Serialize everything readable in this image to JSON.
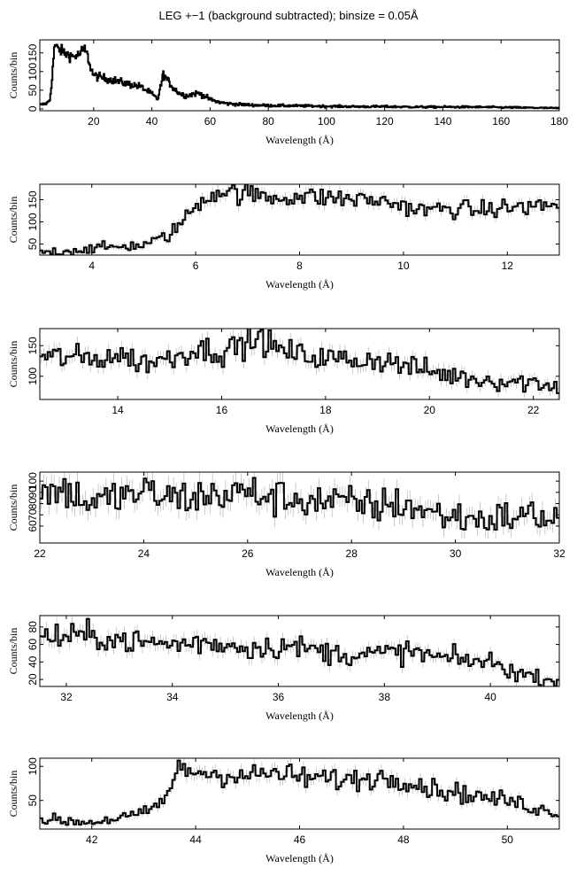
{
  "figure_title": "LEG +−1 (background subtracted); binsize = 0.05Å",
  "chart_data": [
    {
      "type": "line",
      "title": "LEG +−1 (background subtracted); binsize = 0.05Å",
      "xlabel": "Wavelength (Å)",
      "ylabel": "Counts/bin",
      "xlim": [
        1.5,
        180
      ],
      "ylim": [
        -5,
        185
      ],
      "xticks": [
        20,
        40,
        60,
        80,
        100,
        120,
        140,
        160,
        180
      ],
      "yticks": [
        0,
        50,
        100,
        150
      ],
      "ytick_labels": [
        "0",
        "50",
        "100",
        "150"
      ],
      "series": [
        {
          "x": [
            1.5,
            4,
            5,
            6,
            6.5,
            8,
            10,
            13,
            15,
            16,
            17,
            18,
            19,
            20,
            22,
            25,
            28,
            30,
            33,
            36,
            38,
            40,
            42,
            43,
            43.5,
            44,
            45,
            47,
            49,
            50,
            52,
            54,
            56,
            58,
            60,
            63,
            66,
            70,
            75,
            80,
            90,
            100,
            110,
            120,
            130,
            140,
            150,
            160,
            170,
            180
          ],
          "y": [
            10,
            15,
            25,
            110,
            170,
            160,
            150,
            140,
            145,
            155,
            160,
            140,
            110,
            90,
            85,
            80,
            75,
            70,
            65,
            60,
            50,
            40,
            25,
            60,
            75,
            95,
            80,
            60,
            45,
            40,
            35,
            40,
            42,
            35,
            25,
            18,
            14,
            12,
            10,
            9,
            8,
            7,
            6,
            6,
            5,
            5,
            5,
            4,
            3,
            2
          ]
        }
      ]
    },
    {
      "type": "line",
      "xlabel": "Wavelength (Å)",
      "ylabel": "Counts/bin",
      "xlim": [
        3.0,
        13.0
      ],
      "ylim": [
        25,
        185
      ],
      "xticks": [
        4,
        6,
        8,
        10,
        12
      ],
      "yticks": [
        50,
        100,
        150
      ],
      "ytick_labels": [
        "50",
        "100",
        "150"
      ],
      "series": [
        {
          "x": [
            3.0,
            3.5,
            4.0,
            4.5,
            5.0,
            5.3,
            5.5,
            5.7,
            5.9,
            6.0,
            6.2,
            6.4,
            6.6,
            6.8,
            7.0,
            7.2,
            7.5,
            8.0,
            8.5,
            9.0,
            9.5,
            10.0,
            10.3,
            10.5,
            11.0,
            11.5,
            12.0,
            12.5,
            13.0
          ],
          "y": [
            32,
            34,
            40,
            44,
            48,
            60,
            72,
            95,
            120,
            138,
            155,
            168,
            170,
            165,
            162,
            160,
            155,
            158,
            155,
            152,
            148,
            138,
            125,
            128,
            130,
            126,
            132,
            135,
            140
          ]
        }
      ]
    },
    {
      "type": "line",
      "xlabel": "Wavelength (Å)",
      "ylabel": "Counts/bin",
      "xlim": [
        12.5,
        22.5
      ],
      "ylim": [
        62,
        178
      ],
      "xticks": [
        14,
        16,
        18,
        20,
        22
      ],
      "yticks": [
        100,
        150
      ],
      "ytick_labels": [
        "100",
        "150"
      ],
      "series": [
        {
          "x": [
            12.5,
            13.0,
            13.5,
            14.0,
            14.5,
            15.0,
            15.5,
            16.0,
            16.5,
            16.8,
            17.0,
            17.5,
            18.0,
            18.5,
            19.0,
            19.5,
            20.0,
            20.5,
            21.0,
            21.5,
            22.0,
            22.5
          ],
          "y": [
            130,
            132,
            128,
            135,
            122,
            130,
            145,
            140,
            155,
            162,
            145,
            135,
            130,
            126,
            128,
            118,
            108,
            100,
            95,
            92,
            90,
            85
          ]
        }
      ]
    },
    {
      "type": "line",
      "xlabel": "Wavelength (Å)",
      "ylabel": "Counts/bin",
      "xlim": [
        22,
        32
      ],
      "ylim": [
        45,
        108
      ],
      "xticks": [
        22,
        24,
        26,
        28,
        30,
        32
      ],
      "yticks": [
        60,
        70,
        80,
        90,
        100
      ],
      "ytick_labels": [
        "60",
        "70",
        "80",
        "90",
        "100"
      ],
      "series": [
        {
          "x": [
            22.0,
            22.5,
            23.0,
            23.5,
            24.0,
            24.5,
            25.0,
            25.5,
            26.0,
            26.5,
            27.0,
            27.5,
            28.0,
            28.5,
            29.0,
            29.5,
            30.0,
            30.5,
            31.0,
            31.5,
            32.0
          ],
          "y": [
            90,
            92,
            80,
            86,
            90,
            85,
            86,
            88,
            90,
            85,
            84,
            82,
            80,
            78,
            80,
            72,
            68,
            66,
            68,
            70,
            66
          ]
        }
      ]
    },
    {
      "type": "line",
      "xlabel": "Wavelength (Å)",
      "ylabel": "Counts/bin",
      "xlim": [
        31.5,
        41.3
      ],
      "ylim": [
        12,
        93
      ],
      "xticks": [
        32,
        34,
        36,
        38,
        40
      ],
      "yticks": [
        20,
        40,
        60,
        80
      ],
      "ytick_labels": [
        "20",
        "40",
        "60",
        "80"
      ],
      "series": [
        {
          "x": [
            31.5,
            32.0,
            32.5,
            33.0,
            33.5,
            34.0,
            34.5,
            35.0,
            35.5,
            36.0,
            36.5,
            37.0,
            37.5,
            38.0,
            38.5,
            39.0,
            39.5,
            40.0,
            40.5,
            41.0,
            41.3
          ],
          "y": [
            70,
            68,
            70,
            65,
            62,
            60,
            62,
            60,
            56,
            58,
            56,
            50,
            48,
            50,
            52,
            45,
            42,
            40,
            28,
            20,
            20
          ]
        }
      ]
    },
    {
      "type": "line",
      "xlabel": "Wavelength (Å)",
      "ylabel": "Counts/bin",
      "xlim": [
        41.0,
        51.0
      ],
      "ylim": [
        8,
        112
      ],
      "xticks": [
        42,
        44,
        46,
        48,
        50
      ],
      "yticks": [
        50,
        100
      ],
      "ytick_labels": [
        "50",
        "100"
      ],
      "series": [
        {
          "x": [
            41.0,
            41.5,
            42.0,
            42.5,
            43.0,
            43.3,
            43.5,
            43.7,
            44.0,
            44.5,
            45.0,
            45.5,
            46.0,
            46.5,
            47.0,
            47.5,
            48.0,
            48.5,
            49.0,
            49.5,
            50.0,
            50.5,
            51.0
          ],
          "y": [
            22,
            20,
            18,
            24,
            30,
            45,
            65,
            98,
            92,
            88,
            86,
            90,
            84,
            82,
            80,
            84,
            82,
            68,
            62,
            55,
            50,
            40,
            30
          ]
        }
      ]
    }
  ]
}
